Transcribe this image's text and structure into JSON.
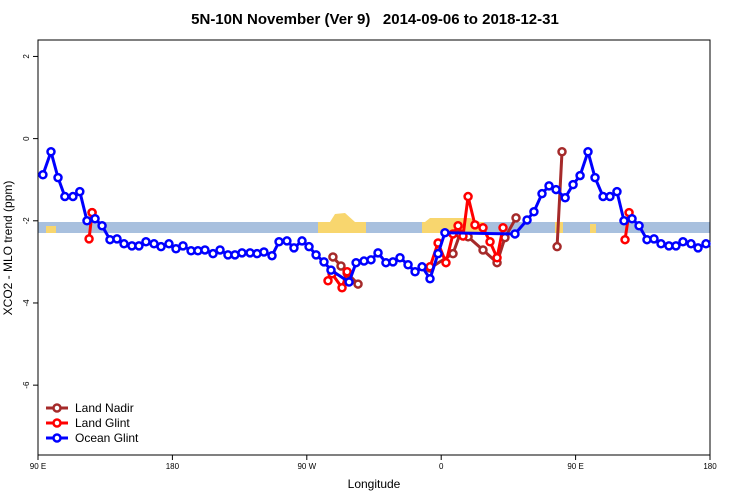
{
  "chart_data": {
    "type": "line",
    "title": "5N-10N November (Ver 9)   2014-09-06 to 2018-12-31",
    "xlabel": "Longitude",
    "ylabel": "XCO2 - MLO trend (ppm)",
    "xlim": [
      90,
      540
    ],
    "ylim": [
      -7.7,
      2.4
    ],
    "xticks": [
      {
        "value": 90,
        "label": "90 E"
      },
      180,
      {
        "value": 270,
        "label": "90 W"
      },
      {
        "value": 360,
        "label": "0"
      },
      {
        "value": 450,
        "label": "90 E"
      },
      {
        "value": 540,
        "label": "180"
      }
    ],
    "yticks": [
      2,
      0,
      -2,
      -4,
      -6
    ],
    "legend": "bottom-left",
    "series": [
      {
        "name": "Land Nadir",
        "color": "#a52a2a",
        "x": [
          126.2,
          null,
          287.5,
          292.9,
          297,
          304.3,
          null,
          352.5,
          367.9,
          372.6,
          378,
          388,
          397.4,
          402.7,
          410.1,
          null,
          437.6,
          440.9
        ],
        "values": [
          -1.8,
          null,
          -2.88,
          -3.1,
          -3.27,
          -3.54,
          null,
          -3.15,
          -2.8,
          -2.32,
          -2.39,
          -2.71,
          -3.02,
          -2.41,
          -1.93,
          null,
          -2.63,
          -0.32
        ]
      },
      {
        "name": "Land Glint",
        "color": "#ff0000",
        "x": [
          124.2,
          126.2,
          null,
          284.2,
          286.9,
          293.6,
          297,
          null,
          352.5,
          357.9,
          363.2,
          367.9,
          371.3,
          374.6,
          378,
          382.6,
          388,
          392.7,
          397.4,
          401.4,
          null,
          483.1,
          485.8
        ],
        "values": [
          -2.44,
          -1.8,
          null,
          -3.46,
          -3.29,
          -3.63,
          -3.24,
          null,
          -3.12,
          -2.54,
          -3.02,
          -2.32,
          -2.12,
          -2.37,
          -1.41,
          -2.1,
          -2.17,
          -2.51,
          -2.9,
          -2.17,
          null,
          -2.46,
          -1.8
        ]
      },
      {
        "name": "Ocean Glint",
        "color": "#0000ff",
        "x": [
          93.3,
          98.7,
          103.4,
          108,
          113.4,
          118,
          122.8,
          128.2,
          132.9,
          138.2,
          142.9,
          147.6,
          152.9,
          157.6,
          162.3,
          167.7,
          172.4,
          177.7,
          182.4,
          187.1,
          192.5,
          197.1,
          201.8,
          207.2,
          211.9,
          217.2,
          221.9,
          226.6,
          232,
          236.7,
          241.3,
          246.7,
          251.4,
          256.7,
          261.4,
          266.8,
          271.5,
          276.2,
          281.5,
          286.2,
          298.3,
          303,
          308.3,
          313,
          317.7,
          323,
          327.7,
          332.4,
          337.8,
          342.5,
          347.2,
          352.5,
          357.9,
          362.5,
          409.4,
          417.5,
          422.1,
          427.5,
          432.2,
          436.9,
          443,
          448.3,
          453,
          458.3,
          463,
          468.4,
          473,
          477.7,
          482.4,
          487.8,
          492.5,
          497.8,
          502.5,
          507.2,
          512.5,
          517.2,
          521.9,
          527.3,
          532,
          537.3
        ],
        "values": [
          -0.88,
          -0.32,
          -0.95,
          -1.41,
          -1.41,
          -1.29,
          -2.0,
          -1.95,
          -2.12,
          -2.46,
          -2.44,
          -2.56,
          -2.61,
          -2.61,
          -2.51,
          -2.56,
          -2.63,
          -2.56,
          -2.68,
          -2.61,
          -2.73,
          -2.73,
          -2.71,
          -2.8,
          -2.71,
          -2.83,
          -2.83,
          -2.78,
          -2.78,
          -2.8,
          -2.76,
          -2.85,
          -2.51,
          -2.49,
          -2.66,
          -2.49,
          -2.63,
          -2.83,
          -3.0,
          -3.2,
          -3.49,
          -3.02,
          -2.98,
          -2.95,
          -2.78,
          -3.02,
          -3.0,
          -2.9,
          -3.07,
          -3.24,
          -3.12,
          -3.41,
          -2.8,
          -2.29,
          -2.32,
          -1.98,
          -1.78,
          -1.34,
          -1.15,
          -1.24,
          -1.44,
          -1.12,
          -0.9,
          -0.32,
          -0.95,
          -1.41,
          -1.41,
          -1.29,
          -2.0,
          -1.95,
          -2.12,
          -2.46,
          -2.44,
          -2.56,
          -2.61,
          -2.61,
          -2.51,
          -2.56,
          -2.66,
          -2.56
        ]
      }
    ]
  }
}
